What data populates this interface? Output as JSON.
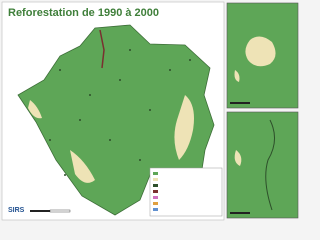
{
  "header": {
    "title": "Reforestation de 1990 à 2000"
  },
  "logo": {
    "text": "SIRS"
  }
}
